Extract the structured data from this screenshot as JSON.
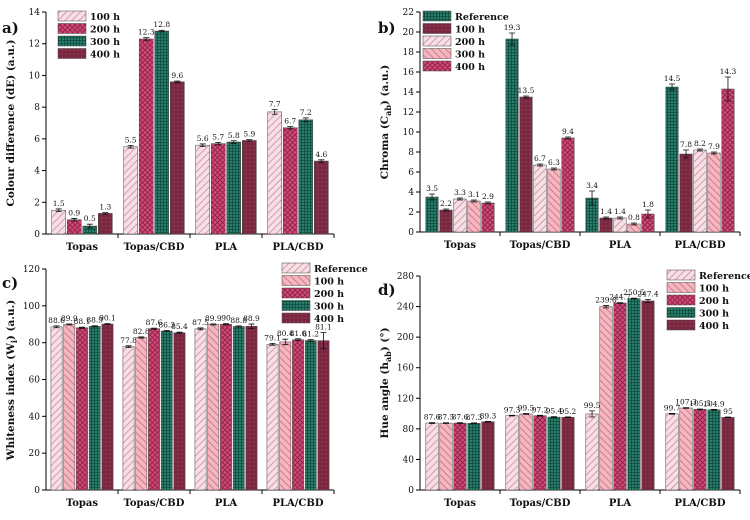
{
  "chart_data": [
    {
      "type": "bar",
      "panel_label": "a)",
      "ylabel": "Colour difference (dE) (a.u.)",
      "ylim": [
        0,
        14
      ],
      "yticks": [
        0,
        2,
        4,
        6,
        8,
        10,
        12,
        14
      ],
      "categories": [
        "Topas",
        "Topas/CBD",
        "PLA",
        "PLA/CBD"
      ],
      "legend_position": "top-left",
      "series": [
        {
          "name": "100 h",
          "key": "h100",
          "values": [
            1.5,
            5.5,
            5.6,
            7.7
          ],
          "errors": [
            0.08,
            0.08,
            0.08,
            0.15
          ],
          "labels": [
            "1.5",
            "5.5",
            "5.6",
            "7.7"
          ]
        },
        {
          "name": "200 h",
          "key": "h200",
          "values": [
            0.9,
            12.3,
            5.7,
            6.7
          ],
          "errors": [
            0.08,
            0.08,
            0.08,
            0.08
          ],
          "labels": [
            "0.9",
            "12.3",
            "5.7",
            "6.7"
          ]
        },
        {
          "name": "300 h",
          "key": "h300",
          "values": [
            0.5,
            12.8,
            5.8,
            7.2
          ],
          "errors": [
            0.12,
            0.05,
            0.08,
            0.12
          ],
          "labels": [
            "0.5",
            "12.8",
            "5.8",
            "7.2"
          ]
        },
        {
          "name": "400 h",
          "key": "h400",
          "values": [
            1.3,
            9.6,
            5.9,
            4.6
          ],
          "errors": [
            0.05,
            0.05,
            0.05,
            0.08
          ],
          "labels": [
            "1.3",
            "9.6",
            "5.9",
            "4.6"
          ]
        }
      ]
    },
    {
      "type": "bar",
      "panel_label": "b)",
      "ylabel_parts": [
        "Chroma (C",
        "ab",
        ") (a.u.)"
      ],
      "ylim": [
        0,
        22
      ],
      "yticks": [
        0,
        2,
        4,
        6,
        8,
        10,
        12,
        14,
        16,
        18,
        20,
        22
      ],
      "categories": [
        "Topas",
        "Topas/CBD",
        "PLA",
        "PLA/CBD"
      ],
      "legend_position": "top-left",
      "series": [
        {
          "name": "Reference",
          "key": "ref",
          "values": [
            3.5,
            19.3,
            3.4,
            14.5
          ],
          "errors": [
            0.3,
            0.6,
            0.7,
            0.3
          ],
          "labels": [
            "3.5",
            "19.3",
            "3.4",
            "14.5"
          ]
        },
        {
          "name": "100 h",
          "key": "h100",
          "values": [
            2.2,
            13.5,
            1.4,
            7.8
          ],
          "errors": [
            0.1,
            0.1,
            0.1,
            0.4
          ],
          "labels": [
            "2.2",
            "13.5",
            "1.4",
            "7.8"
          ]
        },
        {
          "name": "200 h",
          "key": "h200",
          "values": [
            3.3,
            6.7,
            1.4,
            8.2
          ],
          "errors": [
            0.1,
            0.1,
            0.1,
            0.1
          ],
          "labels": [
            "3.3",
            "6.7",
            "1.4",
            "8.2"
          ]
        },
        {
          "name": "300 h",
          "key": "h300",
          "values": [
            3.1,
            6.3,
            0.8,
            7.9
          ],
          "errors": [
            0.1,
            0.1,
            0.1,
            0.1
          ],
          "labels": [
            "3.1",
            "6.3",
            "0.8",
            "7.9"
          ]
        },
        {
          "name": "400 h",
          "key": "h400",
          "values": [
            2.9,
            9.4,
            1.8,
            14.3
          ],
          "errors": [
            0.1,
            0.1,
            0.4,
            1.2
          ],
          "labels": [
            "2.9",
            "9.4",
            "1.8",
            "14.3"
          ]
        }
      ]
    },
    {
      "type": "bar",
      "panel_label": "c)",
      "ylabel_parts": [
        "Whiteness index (W",
        "i",
        ") (a.u.)"
      ],
      "ylim": [
        0,
        120
      ],
      "yticks": [
        0,
        20,
        40,
        60,
        80,
        100,
        120
      ],
      "categories": [
        "Topas",
        "Topas/CBD",
        "PLA",
        "PLA/CBD"
      ],
      "legend_position": "top-right",
      "series": [
        {
          "name": "Reference",
          "key": "ref",
          "values": [
            88.6,
            77.8,
            87.5,
            79.1
          ],
          "errors": [
            0.5,
            0.5,
            0.5,
            0.5
          ],
          "labels": [
            "88.6",
            "77.8",
            "87.5",
            "79.1"
          ]
        },
        {
          "name": "100 h",
          "key": "h100",
          "values": [
            89.9,
            82.8,
            89.9,
            80.4
          ],
          "errors": [
            0.3,
            0.3,
            0.3,
            1.5
          ],
          "labels": [
            "89.9",
            "82.8",
            "89.9",
            "80.4"
          ]
        },
        {
          "name": "200 h",
          "key": "h200",
          "values": [
            88.1,
            87.6,
            90,
            81.6
          ],
          "errors": [
            0.3,
            0.3,
            0.3,
            0.5
          ],
          "labels": [
            "88.1",
            "87.6",
            "90",
            "81.6"
          ]
        },
        {
          "name": "300 h",
          "key": "h300",
          "values": [
            88.9,
            86.3,
            88.8,
            81.2
          ],
          "errors": [
            0.3,
            0.3,
            0.3,
            0.5
          ],
          "labels": [
            "88.9",
            "86.3",
            "88.8",
            "81.2"
          ]
        },
        {
          "name": "400 h",
          "key": "h400",
          "values": [
            90.1,
            85.4,
            88.9,
            81.1
          ],
          "errors": [
            0.3,
            0.3,
            1.2,
            4.5
          ],
          "labels": [
            "90.1",
            "85.4",
            "88.9",
            "81.1"
          ]
        }
      ]
    },
    {
      "type": "bar",
      "panel_label": "d)",
      "ylabel_parts": [
        "Hue angle (h",
        "ab",
        ") (°)"
      ],
      "ylim": [
        0,
        280
      ],
      "yticks": [
        0,
        40,
        80,
        120,
        160,
        200,
        240,
        280
      ],
      "categories": [
        "Topas",
        "Topas/CBD",
        "PLA",
        "PLA/CBD"
      ],
      "legend_position": "top-right",
      "series": [
        {
          "name": "Reference",
          "key": "ref",
          "values": [
            87.6,
            97.3,
            99.5,
            99.7
          ],
          "errors": [
            0.5,
            0.5,
            4.0,
            0.5
          ],
          "labels": [
            "87.6",
            "97.3",
            "99.5",
            "99.7"
          ]
        },
        {
          "name": "100 h",
          "key": "h100",
          "values": [
            87.5,
            99.5,
            239.8,
            107.3
          ],
          "errors": [
            0.5,
            0.5,
            1.5,
            0.5
          ],
          "labels": [
            "87.5",
            "99.5",
            "239.8",
            "107.3"
          ]
        },
        {
          "name": "200 h",
          "key": "h200",
          "values": [
            87.6,
            97.2,
            244.7,
            105.5
          ],
          "errors": [
            0.5,
            0.5,
            0.5,
            0.5
          ],
          "labels": [
            "87.6",
            "97.2",
            "244.7",
            "105.5"
          ]
        },
        {
          "name": "300 h",
          "key": "h300",
          "values": [
            87.3,
            95.4,
            250.5,
            104.9
          ],
          "errors": [
            0.5,
            0.5,
            0.5,
            0.5
          ],
          "labels": [
            "87.3",
            "95.4",
            "250.5",
            "104.9"
          ]
        },
        {
          "name": "400 h",
          "key": "h400",
          "values": [
            89.3,
            95.2,
            247.4,
            95
          ],
          "errors": [
            0.5,
            0.5,
            2.0,
            0.5
          ],
          "labels": [
            "89.3",
            "95.2",
            "247.4",
            "95"
          ]
        }
      ]
    }
  ],
  "colors": {
    "ref": "#1f6d5d",
    "h100_fill": "#f7dfe6",
    "h100_line": "#c87d93",
    "h200": "#d14a78",
    "h300": "#1f6d5d",
    "h400": "#7a2740",
    "h100_b": "#7a2740",
    "h200_b": "#f7dfe6",
    "h300_b": "#e8909f",
    "h400_b": "#d14a78"
  }
}
